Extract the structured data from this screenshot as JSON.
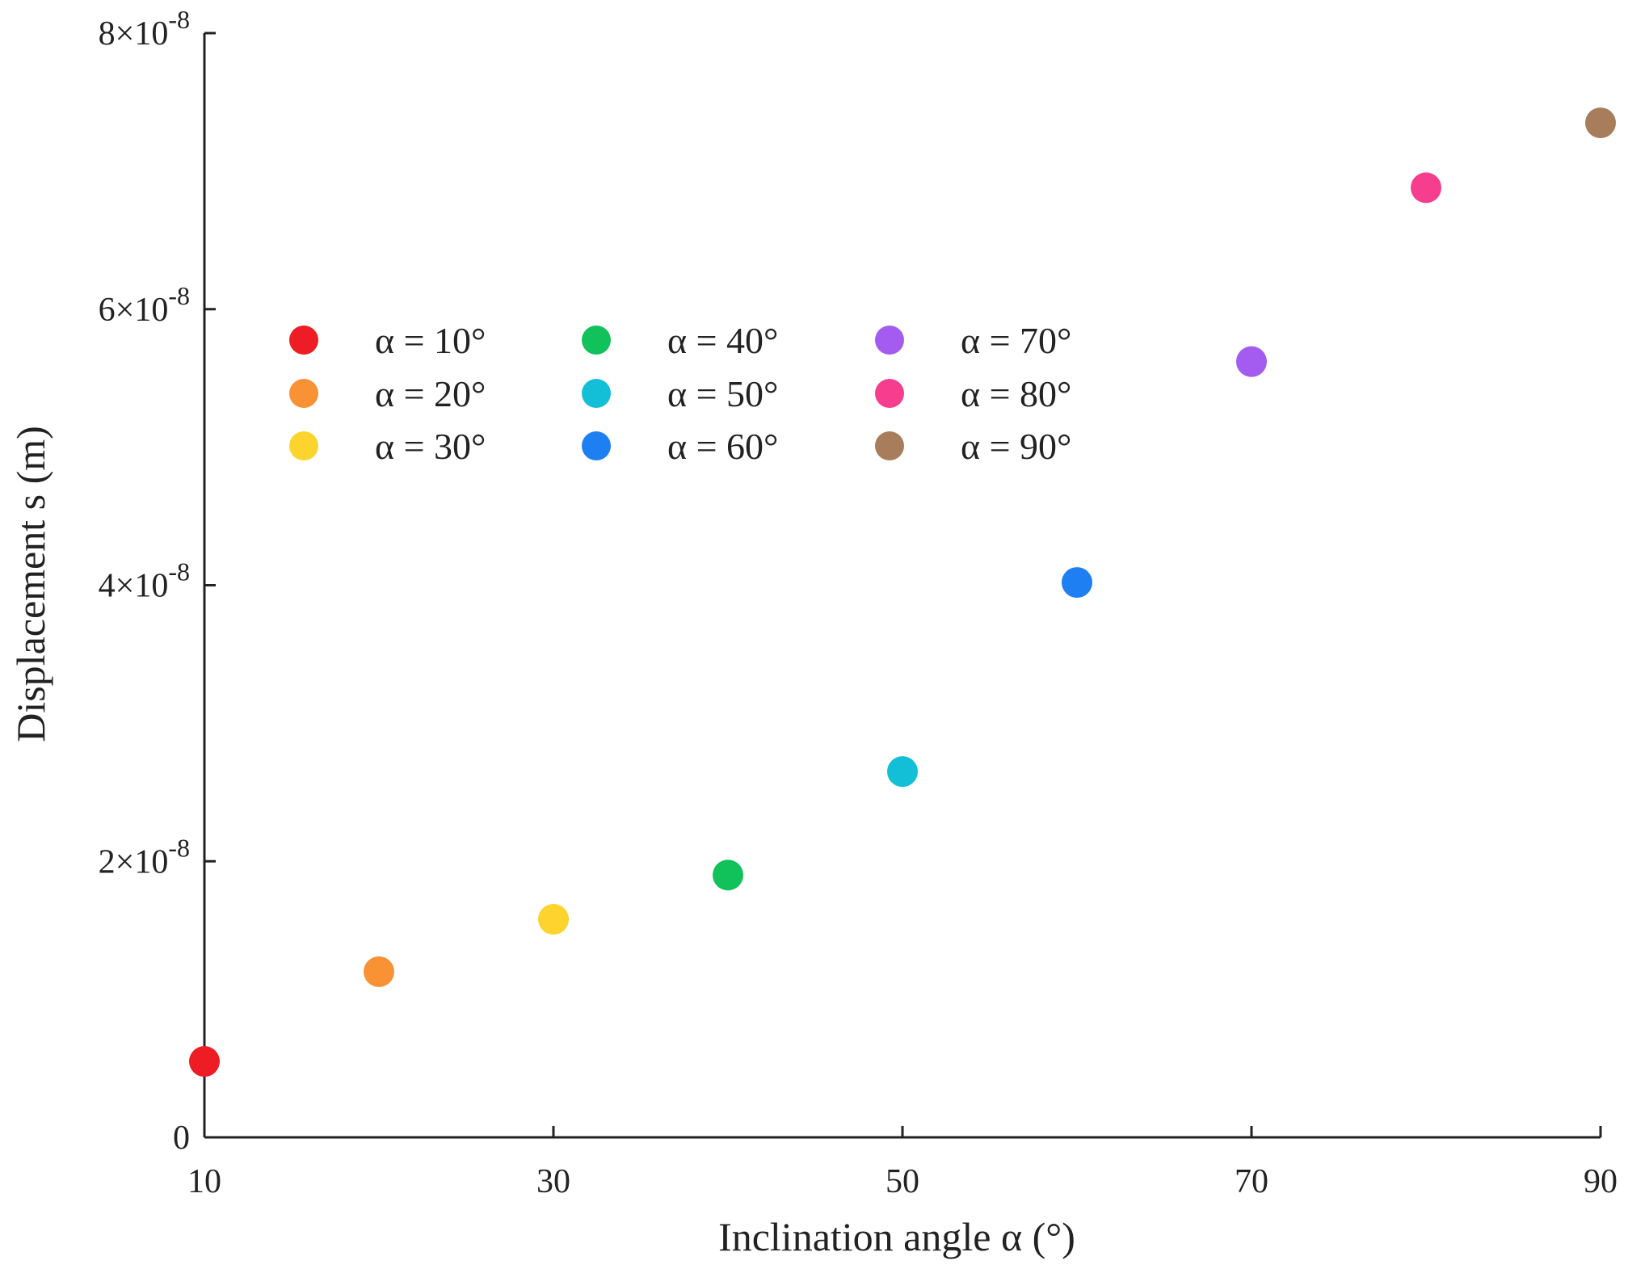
{
  "chart_data": {
    "type": "scatter",
    "title": "",
    "xlabel": "Inclination angle α (°)",
    "ylabel": "Displacement s (m)",
    "xlim": [
      10,
      90
    ],
    "ylim": [
      0,
      8e-08
    ],
    "xticks": [
      10,
      30,
      50,
      70,
      90
    ],
    "xtick_labels": [
      "10",
      "30",
      "50",
      "70",
      "90"
    ],
    "yticks": [
      0,
      2e-08,
      4e-08,
      6e-08,
      8e-08
    ],
    "ytick_labels": [
      {
        "base": "0",
        "exp": ""
      },
      {
        "base": "2×10",
        "exp": "-8"
      },
      {
        "base": "4×10",
        "exp": "-8"
      },
      {
        "base": "6×10",
        "exp": "-8"
      },
      {
        "base": "8×10",
        "exp": "-8"
      }
    ],
    "grid": false,
    "legend_position": "upper-left",
    "series": [
      {
        "name": "α = 10°",
        "color": "#ee1c25",
        "x": 10,
        "y": 5.5e-09
      },
      {
        "name": "α = 20°",
        "color": "#f99135",
        "x": 20,
        "y": 1.2e-08
      },
      {
        "name": "α = 30°",
        "color": "#fcd42d",
        "x": 30,
        "y": 1.58e-08
      },
      {
        "name": "α = 40°",
        "color": "#11c159",
        "x": 40,
        "y": 1.9e-08
      },
      {
        "name": "α = 50°",
        "color": "#12bfd6",
        "x": 50,
        "y": 2.65e-08
      },
      {
        "name": "α = 60°",
        "color": "#1e7ff2",
        "x": 60,
        "y": 4.02e-08
      },
      {
        "name": "α = 70°",
        "color": "#a35cef",
        "x": 70,
        "y": 5.62e-08
      },
      {
        "name": "α = 80°",
        "color": "#f73e8e",
        "x": 80,
        "y": 6.88e-08
      },
      {
        "name": "α = 90°",
        "color": "#a87d5c",
        "x": 90,
        "y": 7.35e-08
      }
    ]
  }
}
